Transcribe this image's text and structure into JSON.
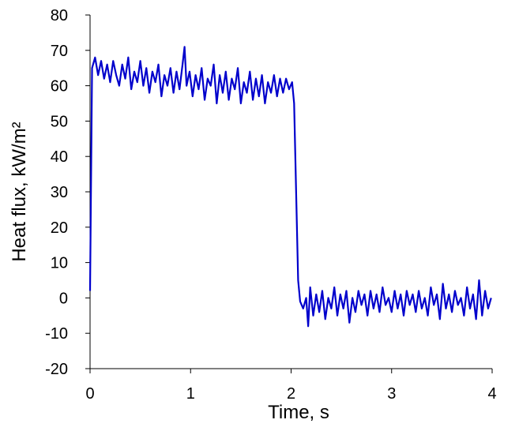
{
  "chart_data": {
    "type": "line",
    "xlabel": "Time, s",
    "ylabel": "Heat flux, kW/m²",
    "xlim": [
      0,
      4
    ],
    "xticks": [
      0,
      1,
      2,
      3,
      4
    ],
    "ylim": [
      -20,
      80
    ],
    "yticks": [
      -20,
      -10,
      0,
      10,
      20,
      30,
      40,
      50,
      60,
      70,
      80
    ],
    "grid": false,
    "color": "#0000cc",
    "x": [
      0,
      0.02,
      0.05,
      0.08,
      0.11,
      0.14,
      0.17,
      0.2,
      0.23,
      0.26,
      0.29,
      0.32,
      0.35,
      0.38,
      0.41,
      0.44,
      0.47,
      0.5,
      0.53,
      0.56,
      0.59,
      0.62,
      0.65,
      0.68,
      0.71,
      0.74,
      0.77,
      0.8,
      0.83,
      0.86,
      0.89,
      0.92,
      0.94,
      0.96,
      0.99,
      1.02,
      1.05,
      1.08,
      1.11,
      1.14,
      1.17,
      1.2,
      1.23,
      1.26,
      1.29,
      1.32,
      1.35,
      1.38,
      1.41,
      1.44,
      1.47,
      1.5,
      1.53,
      1.56,
      1.59,
      1.62,
      1.65,
      1.68,
      1.71,
      1.74,
      1.77,
      1.8,
      1.83,
      1.86,
      1.89,
      1.92,
      1.95,
      1.98,
      2.01,
      2.03,
      2.05,
      2.07,
      2.09,
      2.12,
      2.15,
      2.17,
      2.19,
      2.22,
      2.25,
      2.28,
      2.31,
      2.34,
      2.37,
      2.4,
      2.43,
      2.46,
      2.49,
      2.52,
      2.55,
      2.58,
      2.61,
      2.64,
      2.67,
      2.7,
      2.73,
      2.76,
      2.79,
      2.82,
      2.85,
      2.88,
      2.91,
      2.94,
      2.97,
      3.0,
      3.03,
      3.06,
      3.09,
      3.12,
      3.15,
      3.18,
      3.21,
      3.24,
      3.27,
      3.3,
      3.33,
      3.36,
      3.39,
      3.42,
      3.45,
      3.48,
      3.51,
      3.54,
      3.57,
      3.6,
      3.63,
      3.66,
      3.69,
      3.72,
      3.75,
      3.78,
      3.81,
      3.84,
      3.87,
      3.9,
      3.93,
      3.96,
      3.99
    ],
    "values": [
      2,
      65,
      68,
      63,
      67,
      62,
      66,
      61,
      67,
      63,
      60,
      66,
      62,
      68,
      59,
      64,
      61,
      67,
      60,
      65,
      58,
      64,
      61,
      66,
      57,
      63,
      60,
      65,
      58,
      64,
      59,
      66,
      71,
      60,
      64,
      57,
      63,
      59,
      65,
      56,
      62,
      60,
      66,
      55,
      63,
      58,
      64,
      56,
      62,
      59,
      65,
      55,
      61,
      58,
      64,
      56,
      62,
      57,
      63,
      55,
      61,
      58,
      63,
      57,
      62,
      58,
      62,
      59,
      61,
      55,
      30,
      5,
      -1,
      -3,
      0,
      -8,
      3,
      -5,
      1,
      -4,
      2,
      -6,
      0,
      -3,
      3,
      -5,
      1,
      -3,
      2,
      -7,
      0,
      -4,
      2,
      -2,
      1,
      -5,
      2,
      -3,
      1,
      -4,
      3,
      -2,
      0,
      -4,
      2,
      -3,
      1,
      -5,
      2,
      -2,
      1,
      -4,
      2,
      -3,
      0,
      -5,
      3,
      -2,
      1,
      -6,
      4,
      -3,
      1,
      -4,
      2,
      -2,
      0,
      -5,
      3,
      -3,
      1,
      -6,
      5,
      -5,
      2,
      -3,
      0
    ]
  }
}
